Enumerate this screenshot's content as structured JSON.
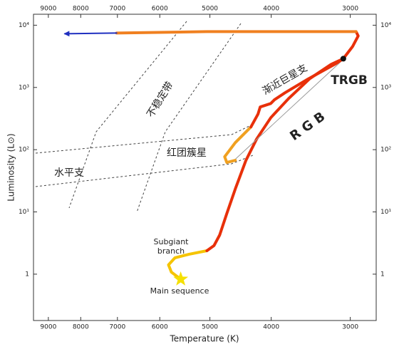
{
  "chart_data": {
    "type": "line",
    "xlabel": "Temperature (K)",
    "ylabel": "Luminosity (L⊙)",
    "xscale": "log",
    "yscale": "log",
    "x_reversed": true,
    "xlim": [
      9500,
      2730
    ],
    "ylim": [
      0.18,
      15000
    ],
    "xticks": [
      9000,
      8000,
      7000,
      6000,
      5000,
      4000,
      3000
    ],
    "yticks": [
      1,
      {
        "value": 10,
        "label": "10¹"
      },
      {
        "value": 100,
        "label": "10²"
      },
      {
        "value": 1000,
        "label": "10³"
      },
      {
        "value": 10000,
        "label": "10⁴"
      }
    ],
    "series": [
      {
        "color": "#f5c400",
        "x": [
          5560,
          5752,
          5812,
          5678,
          5392,
          5054
        ],
        "values": [
          0.83,
          1.08,
          1.41,
          1.83,
          2.09,
          2.38
        ]
      },
      {
        "color": "#e8300a",
        "x": [
          5054,
          4926,
          4825,
          4702,
          4558,
          4385,
          4219,
          4006,
          3754,
          3475,
          3216,
          3077,
          2975,
          2915,
          2938
        ],
        "values": [
          2.38,
          2.87,
          4.25,
          9.4,
          23.5,
          67.4,
          148,
          327,
          665,
          1390,
          2350,
          2900,
          4540,
          6740,
          7890
        ]
      },
      {
        "color": "#999999",
        "x": [
          3094,
          4617
        ],
        "values": [
          2680,
          62.3
        ]
      },
      {
        "color": "#f0a020",
        "x": [
          4558,
          4702,
          4739,
          4558,
          4306
        ],
        "values": [
          67.4,
          62.3,
          76.9,
          130,
          232
        ]
      },
      {
        "color": "#e8300a",
        "x": [
          4306,
          4197,
          4164,
          4006,
          3955,
          3805,
          3520,
          3175,
          3077
        ],
        "values": [
          232,
          373,
          485,
          553,
          631,
          821,
          1318,
          2350,
          2900
        ]
      },
      {
        "color": "#f08020",
        "x": [
          2938,
          3344,
          5054,
          7020
        ],
        "values": [
          7890,
          7890,
          7890,
          7480
        ]
      },
      {
        "color": "#2030c0",
        "x": [
          7020,
          8475
        ],
        "values": [
          7480,
          7290
        ],
        "arrow": true
      }
    ],
    "points": [
      {
        "label": "TRGB",
        "x": 3077,
        "y": 2900,
        "marker": "dot",
        "color": "#111111"
      },
      {
        "label": "Main sequence",
        "x": 5560,
        "y": 0.83,
        "marker": "star",
        "color": "#f5e000"
      }
    ],
    "annotations": {
      "instability_strip": "不稳定带",
      "horizontal_branch": "水平支",
      "red_clump": "红团簇星",
      "agb": "渐近巨星支",
      "rgb": "R G B",
      "subgiant": [
        "Subgiant",
        "branch"
      ]
    }
  }
}
